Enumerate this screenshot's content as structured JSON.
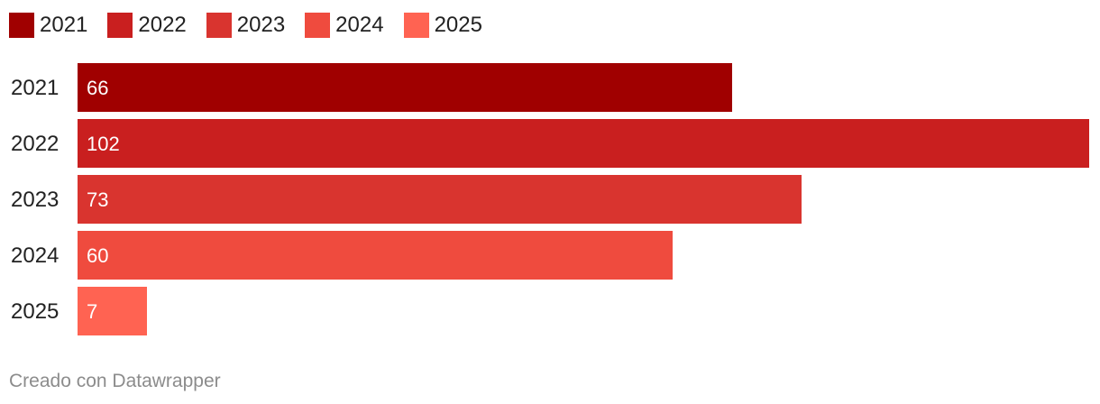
{
  "chart_data": {
    "type": "bar",
    "orientation": "horizontal",
    "categories": [
      "2021",
      "2022",
      "2023",
      "2024",
      "2025"
    ],
    "values": [
      66,
      102,
      73,
      60,
      7
    ],
    "colors": [
      "#a00000",
      "#c91f1f",
      "#d9342f",
      "#ef4b3e",
      "#ff6352"
    ],
    "xlim": [
      0,
      102
    ],
    "grid": false,
    "legend": {
      "placement": "top-left",
      "entries": [
        "2021",
        "2022",
        "2023",
        "2024",
        "2025"
      ]
    }
  },
  "footer": {
    "credit": "Creado con Datawrapper"
  }
}
